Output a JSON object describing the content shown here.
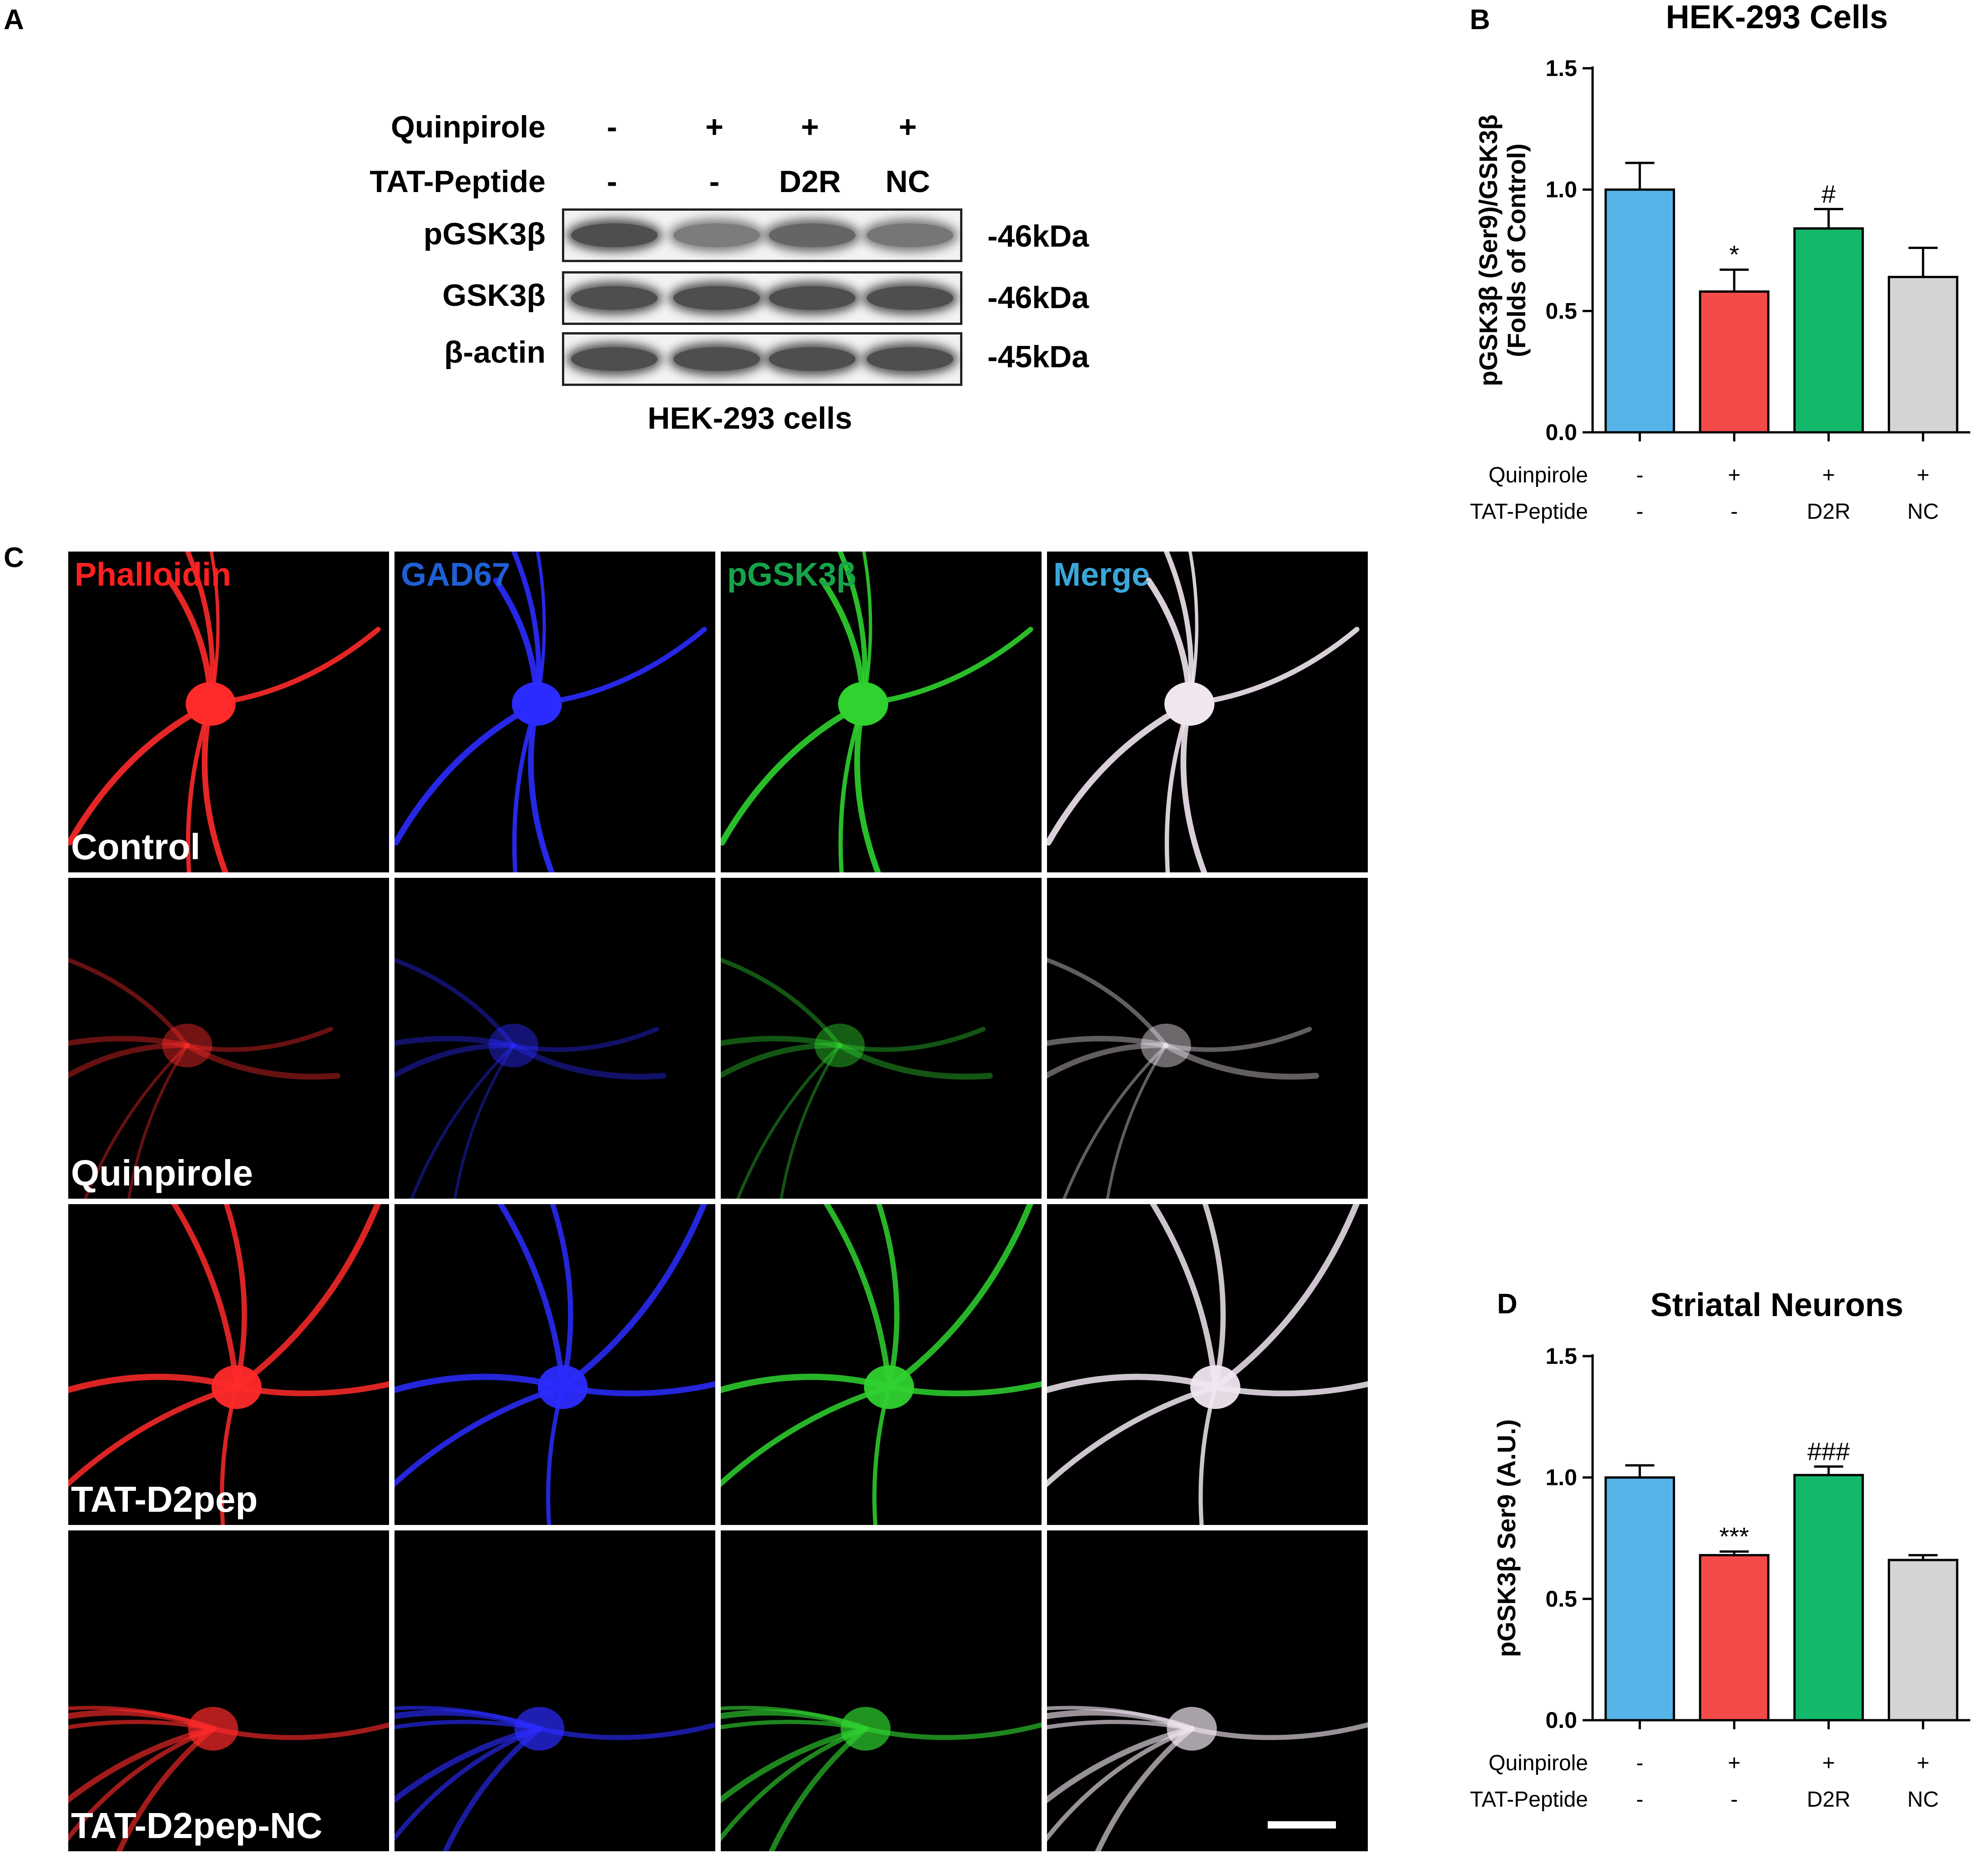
{
  "panel_labels": {
    "a": "A",
    "b": "B",
    "c": "C",
    "d": "D"
  },
  "western_blot": {
    "row_labels": {
      "quinpirole": "Quinpirole",
      "tat": "TAT-Peptide"
    },
    "quinpirole": [
      "-",
      "+",
      "+",
      "+"
    ],
    "tat_peptide": [
      "-",
      "-",
      "D2R",
      "NC"
    ],
    "blots": [
      {
        "label": "pGSK3β",
        "kda": "-46kDa",
        "intensity": [
          1.0,
          0.6,
          0.8,
          0.65
        ]
      },
      {
        "label": "GSK3β",
        "kda": "-46kDa",
        "intensity": [
          1.0,
          1.0,
          1.0,
          1.0
        ]
      },
      {
        "label": "β-actin",
        "kda": "-45kDa",
        "intensity": [
          1.0,
          1.0,
          1.0,
          1.0
        ]
      }
    ],
    "caption": "HEK-293 cells"
  },
  "chart_data": [
    {
      "type": "bar",
      "title": "HEK-293 Cells",
      "ylabel_line1": "pGSK3β (Ser9)/GSK3β",
      "ylabel_line2": "(Folds of Control)",
      "categories": [
        "1",
        "2",
        "3",
        "4"
      ],
      "values": [
        1.0,
        0.58,
        0.84,
        0.64
      ],
      "errors": [
        0.11,
        0.09,
        0.08,
        0.12
      ],
      "annotations": [
        "",
        "*",
        "#",
        ""
      ],
      "colors": [
        "#56b4e9",
        "#f44a4a",
        "#14b86b",
        "#d4d4d4"
      ],
      "ylim": [
        0,
        1.5
      ],
      "yticks": [
        "0.0",
        "0.5",
        "1.0",
        "1.5"
      ],
      "row_labels": [
        "Quinpirole",
        "TAT-Peptide"
      ],
      "quinpirole": [
        "-",
        "+",
        "+",
        "+"
      ],
      "tat_peptide": [
        "-",
        "-",
        "D2R",
        "NC"
      ]
    },
    {
      "type": "bar",
      "title": "Striatal Neurons",
      "ylabel_line1": "pGSK3β Ser9 (A.U.)",
      "ylabel_line2": "",
      "categories": [
        "1",
        "2",
        "3",
        "4"
      ],
      "values": [
        1.0,
        0.68,
        1.01,
        0.66
      ],
      "errors": [
        0.05,
        0.015,
        0.035,
        0.02
      ],
      "annotations": [
        "",
        "***",
        "###",
        ""
      ],
      "colors": [
        "#56b4e9",
        "#f44a4a",
        "#14b86b",
        "#d4d4d4"
      ],
      "ylim": [
        0,
        1.5
      ],
      "yticks": [
        "0.0",
        "0.5",
        "1.0",
        "1.5"
      ],
      "row_labels": [
        "Quinpirole",
        "TAT-Peptide"
      ],
      "quinpirole": [
        "-",
        "+",
        "+",
        "+"
      ],
      "tat_peptide": [
        "-",
        "-",
        "D2R",
        "NC"
      ]
    }
  ],
  "microscopy": {
    "channels": [
      {
        "label": "Phalloidin",
        "color": "#ff2a2a",
        "label_color": "#ff2020"
      },
      {
        "label": "GAD67",
        "color": "#2b2bff",
        "label_color": "#1f5fd6"
      },
      {
        "label": "pGSK3β",
        "color": "#2fd22f",
        "label_color": "#16a34a"
      },
      {
        "label": "Merge",
        "color": "#f0e6f0",
        "label_color": "#3aa7d8"
      }
    ],
    "conditions": [
      "Control",
      "Quinpirole",
      "TAT-D2pep",
      "TAT-D2pep-NC"
    ],
    "brightness": [
      1.0,
      0.45,
      0.95,
      0.7
    ]
  }
}
